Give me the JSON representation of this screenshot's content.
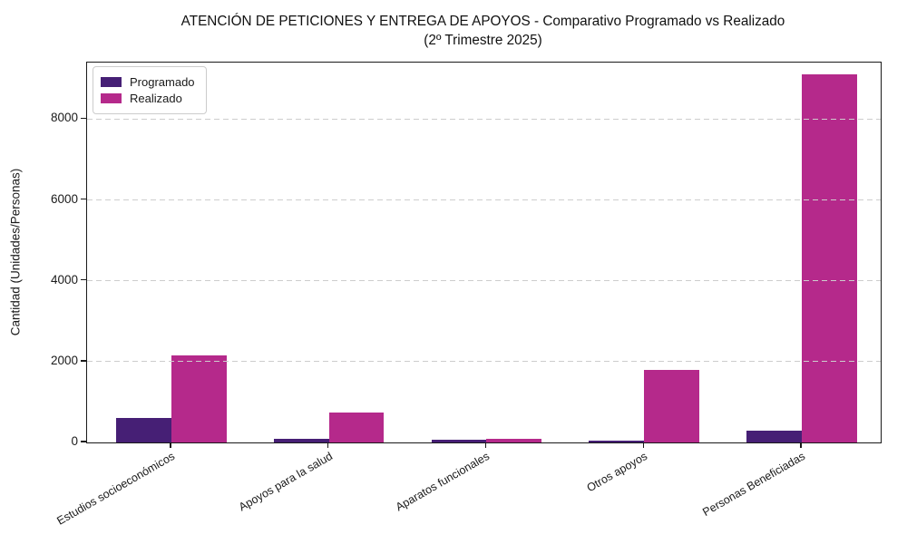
{
  "chart_data": {
    "type": "bar",
    "title": "ATENCIÓN DE PETICIONES Y ENTREGA DE APOYOS - Comparativo Programado vs Realizado\n(2º Trimestre 2025)",
    "title_line1": "ATENCIÓN DE PETICIONES Y ENTREGA DE APOYOS - Comparativo Programado vs Realizado",
    "title_line2": "(2º Trimestre 2025)",
    "xlabel": "",
    "ylabel": "Cantidad (Unidades/Personas)",
    "categories": [
      "Estudios socioeconómicos",
      "Apoyos para la salud",
      "Aparatos funcionales",
      "Otros apoyos",
      "Personas Beneficiadas"
    ],
    "series": [
      {
        "name": "Programado",
        "color": "#461f75",
        "values": [
          600,
          90,
          60,
          40,
          300
        ]
      },
      {
        "name": "Realizado",
        "color": "#b5298b",
        "values": [
          2150,
          750,
          80,
          1800,
          9100
        ]
      }
    ],
    "yticks": [
      0,
      2000,
      4000,
      6000,
      8000
    ],
    "ylim": [
      0,
      9400
    ],
    "bar_width": 0.35,
    "grid": "horizontal-dashed",
    "grid_color": "#cdcdcd",
    "legend_position": "upper-left",
    "x_tick_rotation_deg": 30,
    "axis_color": "#1a1a1a",
    "background_color": "#ffffff"
  }
}
